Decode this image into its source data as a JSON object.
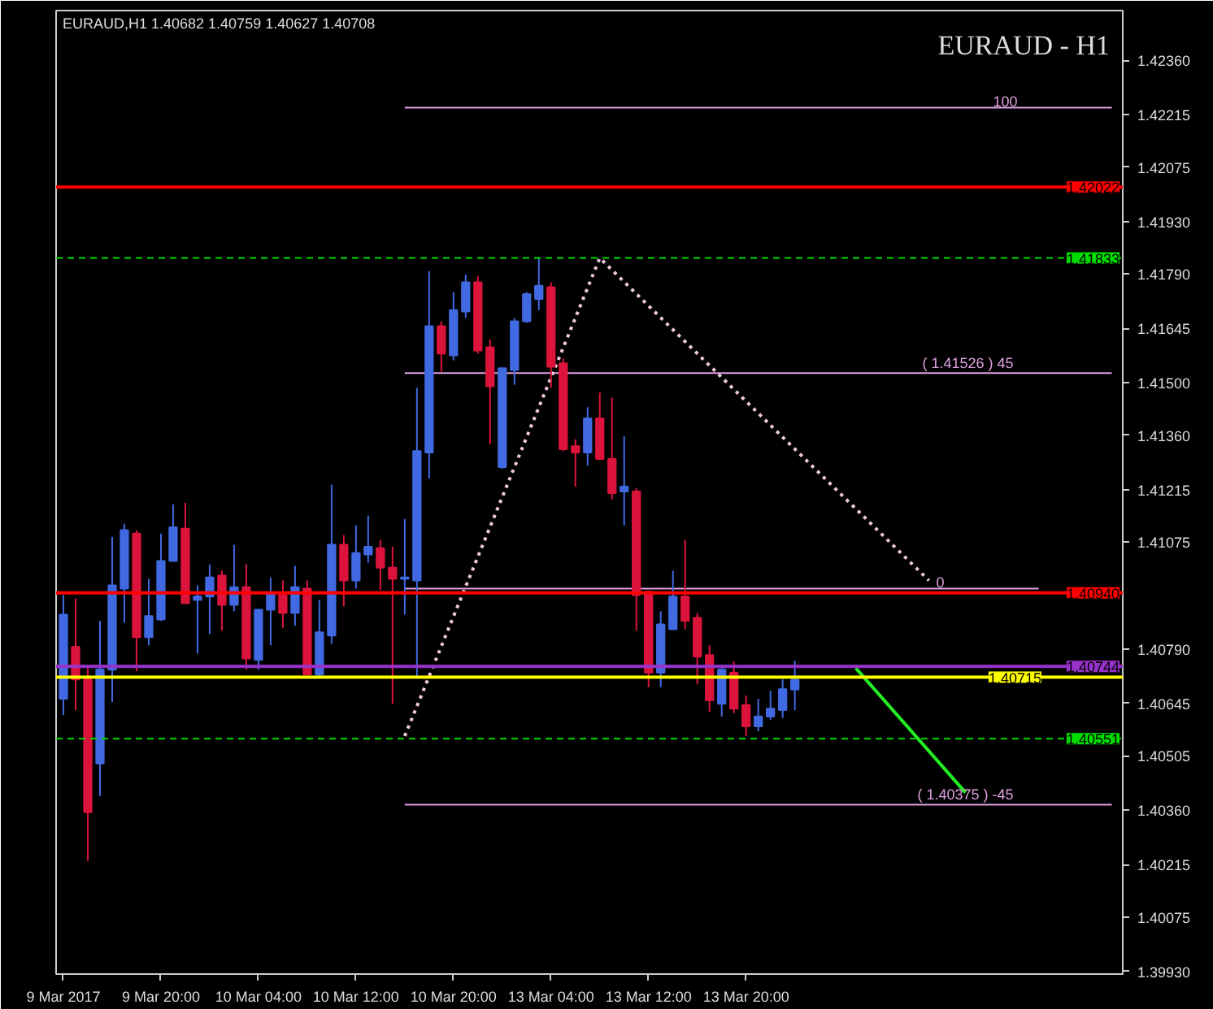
{
  "chart_data": {
    "type": "candlestick",
    "title": "EURAUD - H1",
    "subtitle": "EURAUD,H1  1.40682 1.40759 1.40627 1.40708",
    "categories": [
      "9 Mar 2017",
      null,
      null,
      null,
      null,
      null,
      null,
      null,
      "9 Mar 20:00",
      null,
      null,
      null,
      null,
      null,
      null,
      null,
      "10 Mar 04:00",
      null,
      null,
      null,
      null,
      null,
      null,
      null,
      "10 Mar 12:00",
      null,
      null,
      null,
      null,
      null,
      null,
      null,
      "10 Mar 20:00",
      null,
      null,
      null,
      null,
      null,
      null,
      null,
      "13 Mar 04:00",
      null,
      null,
      null,
      null,
      null,
      null,
      null,
      "13 Mar 12:00",
      null,
      null,
      null,
      null,
      null,
      null,
      null,
      "13 Mar 20:00",
      null,
      null,
      null,
      null,
      null,
      null,
      null,
      null,
      null,
      null,
      null,
      null,
      null,
      null,
      null,
      null,
      null,
      null,
      null,
      null,
      null,
      null,
      null,
      null,
      null,
      null,
      null,
      null,
      null,
      null
    ],
    "ohlc": [
      [
        1.40657,
        1.40934,
        1.40614,
        1.40882
      ],
      [
        1.40796,
        1.40925,
        1.40627,
        1.40709
      ],
      [
        1.40709,
        1.40744,
        1.40225,
        1.40355
      ],
      [
        1.40485,
        1.40865,
        1.40398,
        1.40735
      ],
      [
        1.40735,
        1.41089,
        1.40649,
        1.4096
      ],
      [
        1.40951,
        1.41124,
        1.4086,
        1.41107
      ],
      [
        1.41098,
        1.41107,
        1.40731,
        1.40822
      ],
      [
        1.40822,
        1.40977,
        1.408,
        1.40878
      ],
      [
        1.40869,
        1.41098,
        1.40865,
        1.41025
      ],
      [
        1.41025,
        1.41176,
        1.41025,
        1.41115
      ],
      [
        1.41111,
        1.4118,
        1.40912,
        1.40912
      ],
      [
        1.40921,
        1.4096,
        1.40778,
        1.4093
      ],
      [
        1.4093,
        1.41016,
        1.4083,
        1.40981
      ],
      [
        1.40986,
        1.40999,
        1.40839,
        1.40908
      ],
      [
        1.40908,
        1.41068,
        1.40891,
        1.40955
      ],
      [
        1.40955,
        1.41016,
        1.40735,
        1.40765
      ],
      [
        1.40761,
        1.40895,
        1.40735,
        1.40895
      ],
      [
        1.40895,
        1.40981,
        1.408,
        1.40938
      ],
      [
        1.40934,
        1.40973,
        1.40847,
        1.40886
      ],
      [
        1.40886,
        1.41012,
        1.40852,
        1.40955
      ],
      [
        1.40951,
        1.40973,
        1.40722,
        1.40722
      ],
      [
        1.40722,
        1.40921,
        1.40714,
        1.40835
      ],
      [
        1.40826,
        1.41228,
        1.40804,
        1.41068
      ],
      [
        1.41068,
        1.41094,
        1.40904,
        1.40973
      ],
      [
        1.40973,
        1.4112,
        1.40951,
        1.41046
      ],
      [
        1.41042,
        1.41146,
        1.4102,
        1.41063
      ],
      [
        1.41059,
        1.41081,
        1.40947,
        1.41007
      ],
      [
        1.41007,
        1.41063,
        1.40644,
        1.40977
      ],
      [
        1.40977,
        1.41137,
        1.40882,
        1.40981
      ],
      [
        1.40973,
        1.41487,
        1.40714,
        1.41318
      ],
      [
        1.41314,
        1.41798,
        1.41245,
        1.41651
      ],
      [
        1.41651,
        1.41664,
        1.4153,
        1.41578
      ],
      [
        1.41573,
        1.41742,
        1.4156,
        1.41694
      ],
      [
        1.4169,
        1.41789,
        1.41673,
        1.41768
      ],
      [
        1.41768,
        1.41785,
        1.41578,
        1.41586
      ],
      [
        1.41595,
        1.41616,
        1.41336,
        1.41491
      ],
      [
        1.41275,
        1.41539,
        1.41271,
        1.41539
      ],
      [
        1.41534,
        1.41673,
        1.41495,
        1.41664
      ],
      [
        1.41664,
        1.41742,
        1.4166,
        1.41737
      ],
      [
        1.41724,
        1.41833,
        1.41694,
        1.41759
      ],
      [
        1.41755,
        1.41768,
        1.41487,
        1.41543
      ],
      [
        1.41552,
        1.41565,
        1.41318,
        1.41323
      ],
      [
        1.41331,
        1.41349,
        1.41223,
        1.41314
      ],
      [
        1.41314,
        1.41435,
        1.41279,
        1.41405
      ],
      [
        1.41405,
        1.41474,
        1.41297,
        1.41297
      ],
      [
        1.41297,
        1.41461,
        1.41189,
        1.41206
      ],
      [
        1.4121,
        1.41357,
        1.4112,
        1.41223
      ],
      [
        1.4121,
        1.41219,
        1.40839,
        1.40934
      ],
      [
        1.40943,
        1.40943,
        1.40688,
        1.40727
      ],
      [
        1.40727,
        1.40891,
        1.40688,
        1.40856
      ],
      [
        1.40843,
        1.40999,
        1.40843,
        1.4093
      ],
      [
        1.4093,
        1.41081,
        1.40843,
        1.40865
      ],
      [
        1.40873,
        1.40886,
        1.40696,
        1.4077
      ],
      [
        1.40774,
        1.408,
        1.40623,
        1.40653
      ],
      [
        1.40644,
        1.40739,
        1.4061,
        1.40735
      ],
      [
        1.40727,
        1.40757,
        1.40619,
        1.40631
      ],
      [
        1.4064,
        1.40666,
        1.40558,
        1.40584
      ],
      [
        1.40584,
        1.40657,
        1.40571,
        1.4061
      ],
      [
        1.4061,
        1.40679,
        1.40601,
        1.40631
      ],
      [
        1.40627,
        1.40709,
        1.40606,
        1.40683
      ],
      [
        1.40682,
        1.40759,
        1.40627,
        1.40708
      ],
      null,
      null,
      null,
      null,
      null,
      null,
      null,
      null,
      null,
      null,
      null,
      null,
      null,
      null,
      null,
      null,
      null,
      null,
      null,
      null,
      null,
      null,
      null,
      null,
      null,
      null
    ],
    "colors": [
      "#4169e1",
      "#dc143c",
      "#dc143c",
      "#4169e1",
      "#4169e1",
      "#4169e1",
      "#dc143c",
      "#4169e1",
      "#4169e1",
      "#4169e1",
      "#dc143c",
      "#4169e1",
      "#4169e1",
      "#dc143c",
      "#4169e1",
      "#dc143c",
      "#4169e1",
      "#4169e1",
      "#dc143c",
      "#4169e1",
      "#dc143c",
      "#4169e1",
      "#4169e1",
      "#dc143c",
      "#4169e1",
      "#4169e1",
      "#dc143c",
      "#dc143c",
      "#4169e1",
      "#4169e1",
      "#4169e1",
      "#dc143c",
      "#4169e1",
      "#4169e1",
      "#dc143c",
      "#dc143c",
      "#4169e1",
      "#4169e1",
      "#4169e1",
      "#4169e1",
      "#dc143c",
      "#dc143c",
      "#dc143c",
      "#4169e1",
      "#dc143c",
      "#dc143c",
      "#4169e1",
      "#dc143c",
      "#dc143c",
      "#4169e1",
      "#4169e1",
      "#dc143c",
      "#dc143c",
      "#dc143c",
      "#4169e1",
      "#dc143c",
      "#dc143c",
      "#4169e1",
      "#4169e1",
      "#4169e1",
      "#4169e1",
      null,
      null,
      null,
      null,
      null,
      null,
      null,
      null,
      null,
      null,
      null,
      null,
      null,
      null,
      null,
      null,
      null,
      null,
      null,
      null,
      null,
      null,
      null,
      null,
      null,
      null
    ],
    "series": [
      {
        "type": "line",
        "name": "100",
        "color": "#dda0dd",
        "values": [
          null,
          null,
          null,
          null,
          null,
          null,
          null,
          null,
          null,
          null,
          null,
          null,
          null,
          null,
          null,
          null,
          null,
          null,
          null,
          null,
          null,
          null,
          null,
          null,
          null,
          null,
          null,
          null,
          1.42234,
          null,
          null,
          null,
          null,
          null,
          null,
          null,
          null,
          null,
          null,
          null,
          null,
          null,
          null,
          null,
          null,
          null,
          null,
          null,
          null,
          null,
          null,
          null,
          null,
          null,
          null,
          null,
          null,
          null,
          null,
          null,
          null,
          null,
          null,
          null,
          null,
          null,
          null,
          null,
          null,
          null,
          null,
          null,
          null,
          null,
          null,
          null,
          null,
          null,
          null,
          null,
          null,
          null,
          null,
          null,
          null,
          null,
          1.42234
        ]
      },
      {
        "type": "line",
        "name": "( 1.41526 )  45",
        "color": "#dda0dd",
        "values": [
          null,
          null,
          null,
          null,
          null,
          null,
          null,
          null,
          null,
          null,
          null,
          null,
          null,
          null,
          null,
          null,
          null,
          null,
          null,
          null,
          null,
          null,
          null,
          null,
          null,
          null,
          null,
          null,
          1.41526,
          null,
          null,
          null,
          null,
          null,
          null,
          null,
          null,
          null,
          null,
          null,
          null,
          null,
          null,
          null,
          null,
          null,
          null,
          null,
          null,
          null,
          null,
          null,
          null,
          null,
          null,
          null,
          null,
          null,
          null,
          null,
          null,
          null,
          null,
          null,
          null,
          null,
          null,
          null,
          null,
          null,
          null,
          null,
          null,
          null,
          null,
          null,
          null,
          null,
          null,
          null,
          null,
          null,
          null,
          null,
          null,
          null,
          1.41526
        ]
      },
      {
        "type": "line",
        "name": "0",
        "color": "#dda0dd",
        "values": [
          null,
          null,
          null,
          null,
          null,
          null,
          null,
          null,
          null,
          null,
          null,
          null,
          null,
          null,
          null,
          null,
          null,
          null,
          null,
          null,
          null,
          null,
          null,
          null,
          null,
          null,
          null,
          null,
          1.40951,
          null,
          null,
          null,
          null,
          null,
          null,
          null,
          null,
          null,
          null,
          null,
          null,
          null,
          null,
          null,
          null,
          null,
          null,
          null,
          null,
          null,
          null,
          null,
          null,
          null,
          null,
          null,
          null,
          null,
          null,
          null,
          null,
          null,
          null,
          null,
          null,
          null,
          null,
          null,
          null,
          null,
          null,
          null,
          null,
          null,
          null,
          null,
          null,
          null,
          null,
          null,
          1.40951,
          null,
          null,
          null,
          null,
          null,
          null
        ]
      },
      {
        "type": "line",
        "name": "( 1.40375 )  -45",
        "color": "#dda0dd",
        "values": [
          null,
          null,
          null,
          null,
          null,
          null,
          null,
          null,
          null,
          null,
          null,
          null,
          null,
          null,
          null,
          null,
          null,
          null,
          null,
          null,
          null,
          null,
          null,
          null,
          null,
          null,
          null,
          null,
          1.40375,
          null,
          null,
          null,
          null,
          null,
          null,
          null,
          null,
          null,
          null,
          null,
          null,
          null,
          null,
          null,
          null,
          null,
          null,
          null,
          null,
          null,
          null,
          null,
          null,
          null,
          null,
          null,
          null,
          null,
          null,
          null,
          null,
          null,
          null,
          null,
          null,
          null,
          null,
          null,
          null,
          null,
          null,
          null,
          null,
          null,
          null,
          null,
          null,
          null,
          null,
          null,
          null,
          null,
          null,
          null,
          null,
          null,
          1.40375
        ]
      },
      {
        "type": "line",
        "color": "#f0c8e0",
        "line_style": "dotted",
        "values": [
          null,
          null,
          null,
          null,
          null,
          null,
          null,
          null,
          null,
          null,
          null,
          null,
          null,
          null,
          null,
          null,
          null,
          null,
          null,
          null,
          null,
          null,
          null,
          null,
          null,
          null,
          null,
          null,
          1.40558,
          null,
          null,
          null,
          null,
          null,
          null,
          null,
          null,
          null,
          null,
          null,
          null,
          null,
          null,
          null,
          1.41833,
          null,
          null,
          null,
          null,
          null,
          null,
          null,
          null,
          null,
          null,
          null,
          null,
          null,
          null,
          null,
          null,
          null,
          null,
          null,
          null,
          null,
          null,
          null,
          null,
          null,
          null,
          1.40973,
          null,
          null,
          null,
          null,
          null,
          null,
          null,
          null,
          null,
          null,
          null,
          null,
          null,
          null,
          null
        ]
      },
      {
        "type": "line",
        "color": "#22ee22",
        "values": [
          null,
          null,
          null,
          null,
          null,
          null,
          null,
          null,
          null,
          null,
          null,
          null,
          null,
          null,
          null,
          null,
          null,
          null,
          null,
          null,
          null,
          null,
          null,
          null,
          null,
          null,
          null,
          null,
          null,
          null,
          null,
          null,
          null,
          null,
          null,
          null,
          null,
          null,
          null,
          null,
          null,
          null,
          null,
          null,
          null,
          null,
          null,
          null,
          null,
          null,
          null,
          null,
          null,
          null,
          null,
          null,
          null,
          null,
          null,
          null,
          null,
          null,
          null,
          null,
          null,
          1.40739,
          null,
          null,
          null,
          null,
          null,
          null,
          null,
          null,
          1.40407,
          null,
          null,
          null,
          null,
          null,
          null,
          null,
          null,
          null,
          null,
          null,
          null
        ]
      }
    ],
    "ref_lines": [
      {
        "axis": "y",
        "value": 1.42022,
        "label": "1.42022",
        "color": "#ff0000",
        "line_style": "solid"
      },
      {
        "axis": "y",
        "value": 1.41833,
        "label": "1.41833",
        "color": "#00dd00",
        "line_style": "dashed"
      },
      {
        "axis": "y",
        "value": 1.4094,
        "label": "1.40940",
        "color": "#ff0000",
        "line_style": "solid"
      },
      {
        "axis": "y",
        "value": 1.40744,
        "label": "1.40744",
        "color": "#9932cc",
        "line_style": "solid"
      },
      {
        "axis": "y",
        "value": 1.40715,
        "label": "1.40715",
        "color": "#ffff00",
        "line_style": "solid"
      },
      {
        "axis": "y",
        "value": 1.40551,
        "label": "1.40551",
        "color": "#00dd00",
        "line_style": "dashed"
      }
    ],
    "ylim": [
      1.39923,
      1.42493
    ],
    "yticks": [
      {
        "value": 1.4236,
        "label": "1.42360"
      },
      {
        "value": 1.42215,
        "label": "1.42215"
      },
      {
        "value": 1.42075,
        "label": "1.42075"
      },
      {
        "value": 1.4193,
        "label": "1.41930"
      },
      {
        "value": 1.4179,
        "label": "1.41790"
      },
      {
        "value": 1.41645,
        "label": "1.41645"
      },
      {
        "value": 1.415,
        "label": "1.41500"
      },
      {
        "value": 1.4136,
        "label": "1.41360"
      },
      {
        "value": 1.41215,
        "label": "1.41215"
      },
      {
        "value": 1.41075,
        "label": "1.41075"
      },
      {
        "value": 1.4079,
        "label": "1.40790"
      },
      {
        "value": 1.40645,
        "label": "1.40645"
      },
      {
        "value": 1.40505,
        "label": "1.40505"
      },
      {
        "value": 1.4036,
        "label": "1.40360"
      },
      {
        "value": 1.40215,
        "label": "1.40215"
      },
      {
        "value": 1.40075,
        "label": "1.40075"
      },
      {
        "value": 1.3993,
        "label": "1.39930"
      }
    ]
  }
}
